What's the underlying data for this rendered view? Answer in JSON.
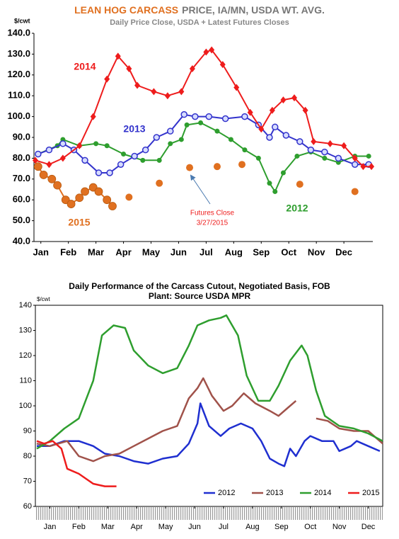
{
  "chart_data": [
    {
      "type": "line",
      "title": [
        "LEAN HOG CARCASS",
        "PRICE, IA/MN, USDA WT. AVG."
      ],
      "subtitle": "Daily Price Close, USDA + Latest Futures Closes",
      "y_label": "$/cwt",
      "xlim": [
        -0.25,
        12.05
      ],
      "xticks": [
        {
          "value": 0,
          "label": "Jan"
        },
        {
          "value": 1,
          "label": "Feb"
        },
        {
          "value": 2,
          "label": "Mar"
        },
        {
          "value": 3,
          "label": "Apr"
        },
        {
          "value": 4,
          "label": "May"
        },
        {
          "value": 5,
          "label": "Jun"
        },
        {
          "value": 6,
          "label": "Jul"
        },
        {
          "value": 7,
          "label": "Aug"
        },
        {
          "value": 8,
          "label": "Sep"
        },
        {
          "value": 9,
          "label": "Oct"
        },
        {
          "value": 10,
          "label": "Nov"
        },
        {
          "value": 11,
          "label": "Dec"
        }
      ],
      "ylim": [
        40,
        140
      ],
      "yticks": [
        {
          "value": 40,
          "label": "40.0"
        },
        {
          "value": 50,
          "label": "50.0"
        },
        {
          "value": 60,
          "label": "60.0"
        },
        {
          "value": 70,
          "label": "70.0"
        },
        {
          "value": 80,
          "label": "80.0"
        },
        {
          "value": 90,
          "label": "90.0"
        },
        {
          "value": 100,
          "label": "100.0"
        },
        {
          "value": 110,
          "label": "110.0"
        },
        {
          "value": 120,
          "label": "120.0"
        },
        {
          "value": 130,
          "label": "130.0"
        },
        {
          "value": 140,
          "label": "140.0"
        }
      ],
      "series": [
        {
          "name": "2012",
          "color": "#2e9e2e",
          "marker": "circle",
          "x": [
            -0.1,
            0.6,
            0.8,
            1.4,
            2.0,
            2.4,
            3.0,
            3.7,
            4.3,
            4.7,
            5.1,
            5.3,
            5.8,
            6.4,
            6.9,
            7.4,
            7.9,
            8.3,
            8.5,
            8.8,
            9.3,
            9.8,
            10.3,
            10.8,
            11.4,
            11.9
          ],
          "values": [
            82,
            86,
            89,
            86,
            87,
            86,
            82,
            79,
            79,
            87,
            89,
            96,
            97,
            93,
            89,
            84,
            80,
            68,
            64,
            73,
            81,
            83,
            80,
            78,
            81,
            81
          ]
        },
        {
          "name": "2013",
          "color": "#3333cc",
          "marker": "open-circle",
          "x": [
            -0.1,
            0.3,
            0.8,
            1.2,
            1.6,
            2.1,
            2.5,
            2.9,
            3.4,
            3.8,
            4.2,
            4.7,
            5.2,
            5.6,
            6.1,
            6.7,
            7.4,
            7.9,
            8.3,
            8.5,
            8.9,
            9.4,
            9.8,
            10.3,
            10.8,
            11.4,
            11.9
          ],
          "values": [
            82,
            84,
            87,
            84,
            79,
            73,
            73,
            77,
            81,
            84,
            90,
            93,
            101,
            100,
            100,
            99,
            100,
            96,
            90,
            95,
            91,
            88,
            84,
            83,
            80,
            77,
            77
          ]
        },
        {
          "name": "2014",
          "color": "#ee1c1c",
          "marker": "diamond",
          "x": [
            -0.2,
            0.3,
            0.8,
            1.4,
            1.9,
            2.4,
            2.8,
            3.2,
            3.5,
            4.1,
            4.6,
            5.1,
            5.5,
            6.0,
            6.2,
            6.6,
            7.1,
            7.6,
            8.0,
            8.4,
            8.8,
            9.2,
            9.6,
            9.9,
            10.5,
            11.0,
            11.4,
            11.7,
            12.0
          ],
          "values": [
            79,
            77,
            80,
            86,
            100,
            118,
            129,
            123,
            115,
            112,
            110,
            112,
            123,
            131,
            132,
            125,
            114,
            102,
            94,
            103,
            108,
            109,
            103,
            88,
            87,
            86,
            80,
            76,
            76
          ]
        },
        {
          "name": "2015",
          "color": "#e07020",
          "marker": "big-circle",
          "x": [
            -0.1,
            0.1,
            0.4,
            0.6,
            0.9,
            1.1,
            1.4,
            1.6,
            1.9,
            2.1,
            2.4,
            2.6
          ],
          "values": [
            76,
            72,
            70,
            67,
            60,
            58,
            61,
            64,
            66,
            64,
            60,
            57
          ]
        },
        {
          "color": "#e07020",
          "marker": "dot",
          "no_line": true,
          "x": [
            3.2,
            4.3,
            5.4,
            6.4,
            7.3,
            9.4,
            11.4
          ],
          "values": [
            61.3,
            68,
            75.5,
            76,
            77,
            67.5,
            64
          ]
        }
      ],
      "annotations": [
        "Futures Close",
        "3/27/2015"
      ]
    },
    {
      "type": "line",
      "title": [
        "Daily Performance of the Carcass Cutout, Negotiated Basis, FOB",
        "Plant: Source USDA MPR"
      ],
      "y_label": "$/cwt",
      "xlim": [
        0,
        12
      ],
      "xticks": [
        {
          "value": 0.5,
          "label": "Jan"
        },
        {
          "value": 1.5,
          "label": "Feb"
        },
        {
          "value": 2.5,
          "label": "Mar"
        },
        {
          "value": 3.5,
          "label": "Apr"
        },
        {
          "value": 4.5,
          "label": "May"
        },
        {
          "value": 5.5,
          "label": "Jun"
        },
        {
          "value": 6.5,
          "label": "Jul"
        },
        {
          "value": 7.5,
          "label": "Aug"
        },
        {
          "value": 8.5,
          "label": "Sep"
        },
        {
          "value": 9.5,
          "label": "Oct"
        },
        {
          "value": 10.5,
          "label": "Nov"
        },
        {
          "value": 11.5,
          "label": "Dec"
        }
      ],
      "ylim": [
        60,
        140
      ],
      "yticks": [
        60,
        70,
        80,
        90,
        100,
        110,
        120,
        130,
        140
      ],
      "legend": "bottom",
      "series": [
        {
          "name": "2012",
          "color": "#1f2fd0",
          "x": [
            0.05,
            0.5,
            1.0,
            1.5,
            2.0,
            2.4,
            2.9,
            3.4,
            3.9,
            4.4,
            4.9,
            5.3,
            5.6,
            5.7,
            6.0,
            6.4,
            6.7,
            7.1,
            7.5,
            7.8,
            8.1,
            8.4,
            8.6,
            8.8,
            9.0,
            9.3,
            9.5,
            9.9,
            10.3,
            10.5,
            10.9,
            11.1,
            11.5,
            11.9
          ],
          "values": [
            84,
            84,
            86,
            86,
            84,
            81,
            80,
            78,
            77,
            79,
            80,
            85,
            93,
            101,
            92,
            88,
            91,
            93,
            91,
            86,
            79,
            77,
            76,
            83,
            80,
            86,
            88,
            86,
            86,
            82,
            84,
            86,
            84,
            82
          ]
        },
        {
          "name": "2013",
          "color": "#a0524a",
          "x": [
            0.05,
            0.5,
            1.1,
            1.5,
            2.0,
            2.4,
            2.9,
            3.4,
            3.9,
            4.4,
            4.9,
            5.3,
            5.6,
            5.8,
            6.1,
            6.5,
            6.8,
            7.2,
            7.6,
            8.1,
            8.4,
            8.7,
            9.0,
            9.3,
            9.7,
            10.1,
            10.5,
            11.0,
            11.5,
            12.0
          ],
          "values": [
            85,
            84,
            86,
            80,
            78,
            80,
            81,
            84,
            87,
            90,
            92,
            103,
            107,
            111,
            104,
            98,
            100,
            105,
            101,
            98,
            96,
            99,
            102,
            null,
            95,
            94,
            91,
            90,
            90,
            85
          ]
        },
        {
          "name": "2014",
          "color": "#2e9e2e",
          "x": [
            0.05,
            0.5,
            1.0,
            1.5,
            2.0,
            2.3,
            2.7,
            3.1,
            3.4,
            3.9,
            4.4,
            4.9,
            5.3,
            5.6,
            6.0,
            6.4,
            6.6,
            7.0,
            7.3,
            7.7,
            8.1,
            8.4,
            8.8,
            9.2,
            9.4,
            9.7,
            10.0,
            10.5,
            11.0,
            11.5,
            12.0
          ],
          "values": [
            83,
            86,
            91,
            95,
            110,
            128,
            132,
            131,
            122,
            116,
            113,
            115,
            124,
            132,
            134,
            135,
            136,
            128,
            112,
            102,
            102,
            108,
            118,
            124,
            120,
            106,
            96,
            92,
            91,
            89,
            86
          ]
        },
        {
          "name": "2015",
          "color": "#ee1c1c",
          "x": [
            0.05,
            0.3,
            0.6,
            0.9,
            1.1,
            1.5,
            2.0,
            2.4,
            2.8
          ],
          "values": [
            86,
            85,
            86,
            83,
            75,
            73,
            69,
            68,
            68
          ]
        }
      ]
    }
  ]
}
